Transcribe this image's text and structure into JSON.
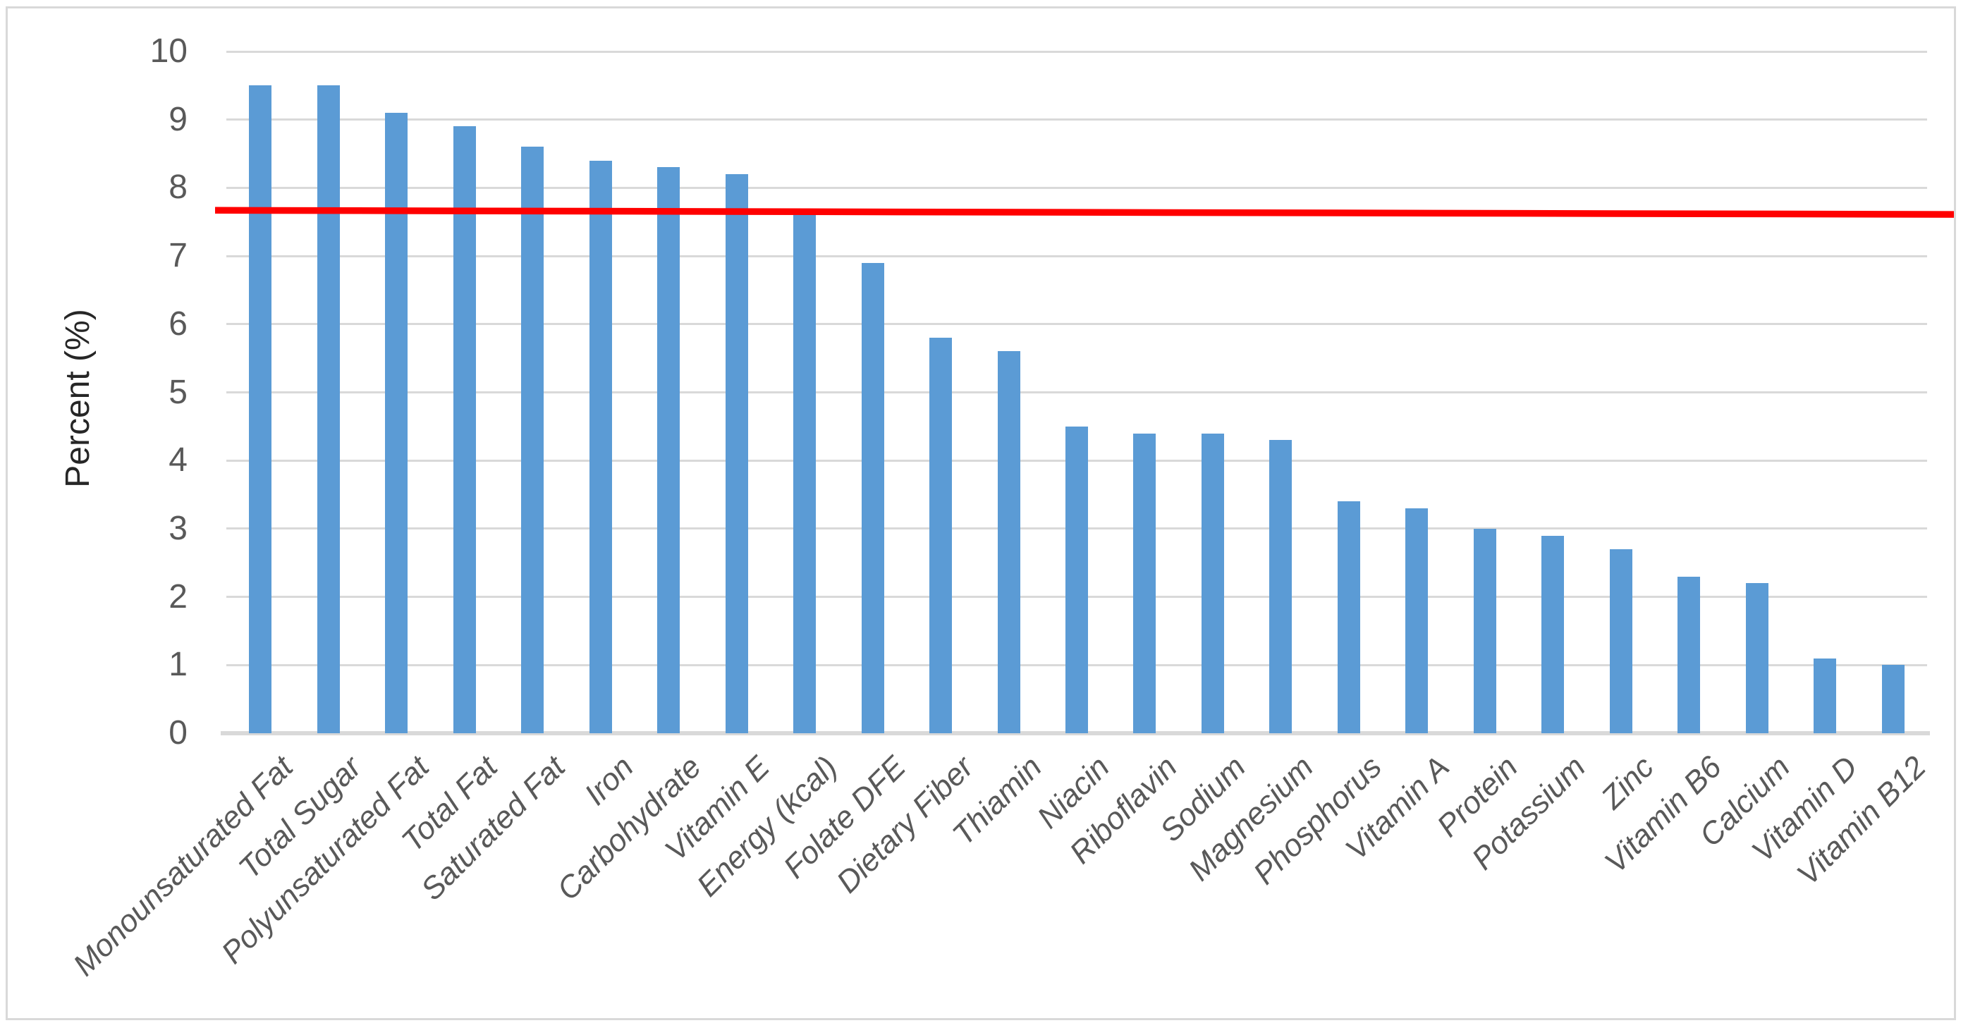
{
  "chart_data": {
    "type": "bar",
    "title": "",
    "xlabel": "",
    "ylabel": "Percent (%)",
    "ylim": [
      0,
      10
    ],
    "yticks": [
      0,
      1,
      2,
      3,
      4,
      5,
      6,
      7,
      8,
      9,
      10
    ],
    "grid": true,
    "legend_position": "none",
    "bar_color": "#5b9bd5",
    "gridline_color": "#d9d9d9",
    "tick_label_color": "#595959",
    "axis_title_color": "#262626",
    "categories": [
      "Monounsaturated Fat",
      "Total Sugar",
      "Polyunsaturated Fat",
      "Total Fat",
      "Saturated Fat",
      "Iron",
      "Carbohydrate",
      "Vitamin E",
      "Energy (kcal)",
      "Folate DFE",
      "Dietary Fiber",
      "Thiamin",
      "Niacin",
      "Riboflavin",
      "Sodium",
      "Magnesium",
      "Phosphorus",
      "Vitamin A",
      "Protein",
      "Potassium",
      "Zinc",
      "Vitamin B6",
      "Calcium",
      "Vitamin D",
      "Vitamin B12"
    ],
    "values": [
      9.5,
      9.5,
      9.1,
      8.9,
      8.6,
      8.4,
      8.3,
      8.2,
      7.6,
      6.9,
      5.8,
      5.6,
      4.5,
      4.4,
      4.4,
      4.3,
      3.4,
      3.3,
      3.0,
      2.9,
      2.7,
      2.3,
      2.2,
      1.1,
      1.0
    ],
    "reference_line": {
      "value": 7.65,
      "start_value": 7.67,
      "end_value": 7.61,
      "color": "#ff0000"
    }
  }
}
